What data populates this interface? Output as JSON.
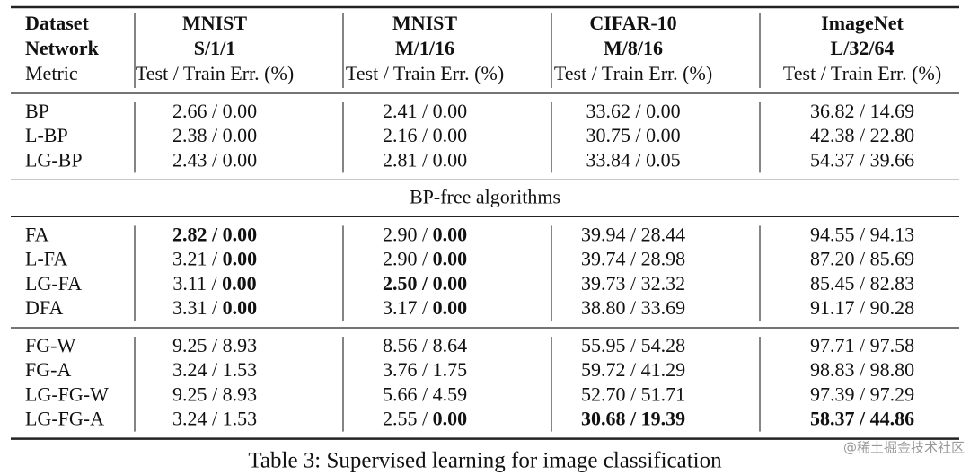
{
  "header": {
    "row_labels": [
      "Dataset",
      "Network",
      "Metric"
    ],
    "columns": [
      {
        "dataset": "MNIST",
        "network": "S/1/1",
        "metric": "Test / Train Err. (%)"
      },
      {
        "dataset": "MNIST",
        "network": "M/1/16",
        "metric": "Test / Train Err. (%)"
      },
      {
        "dataset": "CIFAR-10",
        "network": "M/8/16",
        "metric": "Test / Train Err. (%)"
      },
      {
        "dataset": "ImageNet",
        "network": "L/32/64",
        "metric": "Test / Train Err. (%)"
      }
    ]
  },
  "separator": " / ",
  "sections": [
    {
      "rows": [
        {
          "label": "BP",
          "cells": [
            {
              "test": "2.66",
              "train": "0.00"
            },
            {
              "test": "2.41",
              "train": "0.00"
            },
            {
              "test": "33.62",
              "train": "0.00"
            },
            {
              "test": "36.82",
              "train": "14.69"
            }
          ]
        },
        {
          "label": "L-BP",
          "cells": [
            {
              "test": "2.38",
              "train": "0.00"
            },
            {
              "test": "2.16",
              "train": "0.00"
            },
            {
              "test": "30.75",
              "train": "0.00"
            },
            {
              "test": "42.38",
              "train": "22.80"
            }
          ]
        },
        {
          "label": "LG-BP",
          "cells": [
            {
              "test": "2.43",
              "train": "0.00"
            },
            {
              "test": "2.81",
              "train": "0.00"
            },
            {
              "test": "33.84",
              "train": "0.05"
            },
            {
              "test": "54.37",
              "train": "39.66"
            }
          ]
        }
      ]
    },
    {
      "heading": "BP-free algorithms",
      "rows": [
        {
          "label": "FA",
          "cells": [
            {
              "test": "2.82",
              "train": "0.00",
              "bold": [
                "test",
                "train"
              ]
            },
            {
              "test": "2.90",
              "train": "0.00",
              "bold": [
                "train"
              ]
            },
            {
              "test": "39.94",
              "train": "28.44"
            },
            {
              "test": "94.55",
              "train": "94.13"
            }
          ]
        },
        {
          "label": "L-FA",
          "cells": [
            {
              "test": "3.21",
              "train": "0.00",
              "bold": [
                "train"
              ]
            },
            {
              "test": "2.90",
              "train": "0.00",
              "bold": [
                "train"
              ]
            },
            {
              "test": "39.74",
              "train": "28.98"
            },
            {
              "test": "87.20",
              "train": "85.69"
            }
          ]
        },
        {
          "label": "LG-FA",
          "cells": [
            {
              "test": "3.11",
              "train": "0.00",
              "bold": [
                "train"
              ]
            },
            {
              "test": "2.50",
              "train": "0.00",
              "bold": [
                "test",
                "train"
              ]
            },
            {
              "test": "39.73",
              "train": "32.32"
            },
            {
              "test": "85.45",
              "train": "82.83"
            }
          ]
        },
        {
          "label": "DFA",
          "cells": [
            {
              "test": "3.31",
              "train": "0.00",
              "bold": [
                "train"
              ]
            },
            {
              "test": "3.17",
              "train": "0.00",
              "bold": [
                "train"
              ]
            },
            {
              "test": "38.80",
              "train": "33.69"
            },
            {
              "test": "91.17",
              "train": "90.28"
            }
          ]
        }
      ]
    },
    {
      "rows": [
        {
          "label": "FG-W",
          "cells": [
            {
              "test": "9.25",
              "train": "8.93"
            },
            {
              "test": "8.56",
              "train": "8.64"
            },
            {
              "test": "55.95",
              "train": "54.28"
            },
            {
              "test": "97.71",
              "train": "97.58"
            }
          ]
        },
        {
          "label": "FG-A",
          "cells": [
            {
              "test": "3.24",
              "train": "1.53"
            },
            {
              "test": "3.76",
              "train": "1.75"
            },
            {
              "test": "59.72",
              "train": "41.29"
            },
            {
              "test": "98.83",
              "train": "98.80"
            }
          ]
        },
        {
          "label": "LG-FG-W",
          "cells": [
            {
              "test": "9.25",
              "train": "8.93"
            },
            {
              "test": "5.66",
              "train": "4.59"
            },
            {
              "test": "52.70",
              "train": "51.71"
            },
            {
              "test": "97.39",
              "train": "97.29"
            }
          ]
        },
        {
          "label": "LG-FG-A",
          "cells": [
            {
              "test": "3.24",
              "train": "1.53"
            },
            {
              "test": "2.55",
              "train": "0.00",
              "bold": [
                "train"
              ]
            },
            {
              "test": "30.68",
              "train": "19.39",
              "bold": [
                "test",
                "train"
              ]
            },
            {
              "test": "58.37",
              "train": "44.86",
              "bold": [
                "test",
                "train"
              ]
            }
          ]
        }
      ]
    }
  ],
  "caption": "Table 3: Supervised learning for image classification",
  "watermark": "@稀土掘金技术社区"
}
